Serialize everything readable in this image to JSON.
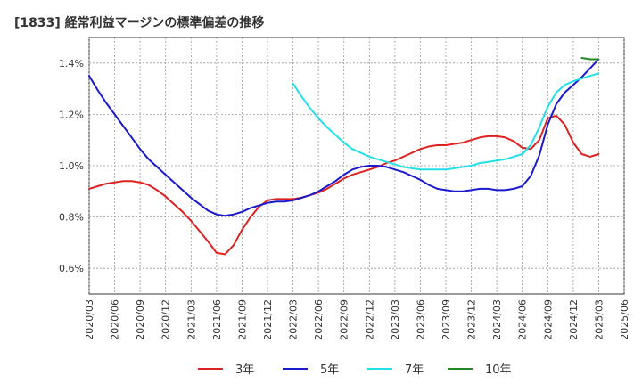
{
  "chart_data": {
    "type": "line",
    "title": "[1833]  経常利益マージンの標準偏差の推移",
    "xlabel": "",
    "ylabel": "",
    "x_ticks": [
      "2020/03",
      "2020/06",
      "2020/09",
      "2020/12",
      "2021/03",
      "2021/06",
      "2021/09",
      "2021/12",
      "2022/03",
      "2022/06",
      "2022/09",
      "2022/12",
      "2023/03",
      "2023/06",
      "2023/09",
      "2023/12",
      "2024/03",
      "2024/06",
      "2024/09",
      "2024/12",
      "2025/03",
      "2025/06"
    ],
    "y_ticks": [
      0.6,
      0.8,
      1.0,
      1.2,
      1.4
    ],
    "y_tick_labels": [
      "0.6%",
      "0.8%",
      "1.0%",
      "1.2%",
      "1.4%"
    ],
    "ylim": [
      0.5,
      1.5
    ],
    "grid": true,
    "legend_position": "bottom",
    "series": [
      {
        "name": "3年",
        "color": "#dd2222",
        "points": [
          [
            "2020/03",
            0.91
          ],
          [
            "2020/04",
            0.92
          ],
          [
            "2020/05",
            0.93
          ],
          [
            "2020/06",
            0.935
          ],
          [
            "2020/07",
            0.94
          ],
          [
            "2020/08",
            0.94
          ],
          [
            "2020/09",
            0.935
          ],
          [
            "2020/10",
            0.925
          ],
          [
            "2020/11",
            0.905
          ],
          [
            "2020/12",
            0.88
          ],
          [
            "2021/01",
            0.85
          ],
          [
            "2021/02",
            0.82
          ],
          [
            "2021/03",
            0.785
          ],
          [
            "2021/04",
            0.745
          ],
          [
            "2021/05",
            0.705
          ],
          [
            "2021/06",
            0.66
          ],
          [
            "2021/07",
            0.655
          ],
          [
            "2021/08",
            0.69
          ],
          [
            "2021/09",
            0.75
          ],
          [
            "2021/10",
            0.8
          ],
          [
            "2021/11",
            0.84
          ],
          [
            "2021/12",
            0.865
          ],
          [
            "2022/01",
            0.87
          ],
          [
            "2022/02",
            0.87
          ],
          [
            "2022/03",
            0.87
          ],
          [
            "2022/04",
            0.875
          ],
          [
            "2022/05",
            0.885
          ],
          [
            "2022/06",
            0.895
          ],
          [
            "2022/07",
            0.91
          ],
          [
            "2022/08",
            0.93
          ],
          [
            "2022/09",
            0.95
          ],
          [
            "2022/10",
            0.965
          ],
          [
            "2022/11",
            0.975
          ],
          [
            "2022/12",
            0.985
          ],
          [
            "2023/01",
            0.995
          ],
          [
            "2023/02",
            1.01
          ],
          [
            "2023/03",
            1.02
          ],
          [
            "2023/04",
            1.035
          ],
          [
            "2023/05",
            1.05
          ],
          [
            "2023/06",
            1.065
          ],
          [
            "2023/07",
            1.075
          ],
          [
            "2023/08",
            1.08
          ],
          [
            "2023/09",
            1.08
          ],
          [
            "2023/10",
            1.085
          ],
          [
            "2023/11",
            1.09
          ],
          [
            "2023/12",
            1.1
          ],
          [
            "2024/01",
            1.11
          ],
          [
            "2024/02",
            1.115
          ],
          [
            "2024/03",
            1.115
          ],
          [
            "2024/04",
            1.11
          ],
          [
            "2024/05",
            1.095
          ],
          [
            "2024/06",
            1.07
          ],
          [
            "2024/07",
            1.065
          ],
          [
            "2024/08",
            1.1
          ],
          [
            "2024/09",
            1.185
          ],
          [
            "2024/10",
            1.195
          ],
          [
            "2024/11",
            1.16
          ],
          [
            "2024/12",
            1.09
          ],
          [
            "2025/01",
            1.045
          ],
          [
            "2025/02",
            1.035
          ],
          [
            "2025/03",
            1.045
          ]
        ]
      },
      {
        "name": "5年",
        "color": "#1a1acc",
        "points": [
          [
            "2020/03",
            1.35
          ],
          [
            "2020/04",
            1.295
          ],
          [
            "2020/05",
            1.245
          ],
          [
            "2020/06",
            1.2
          ],
          [
            "2020/07",
            1.155
          ],
          [
            "2020/08",
            1.11
          ],
          [
            "2020/09",
            1.065
          ],
          [
            "2020/10",
            1.025
          ],
          [
            "2020/11",
            0.995
          ],
          [
            "2020/12",
            0.965
          ],
          [
            "2021/01",
            0.935
          ],
          [
            "2021/02",
            0.905
          ],
          [
            "2021/03",
            0.875
          ],
          [
            "2021/04",
            0.85
          ],
          [
            "2021/05",
            0.825
          ],
          [
            "2021/06",
            0.81
          ],
          [
            "2021/07",
            0.805
          ],
          [
            "2021/08",
            0.81
          ],
          [
            "2021/09",
            0.82
          ],
          [
            "2021/10",
            0.835
          ],
          [
            "2021/11",
            0.845
          ],
          [
            "2021/12",
            0.855
          ],
          [
            "2022/01",
            0.86
          ],
          [
            "2022/02",
            0.86
          ],
          [
            "2022/03",
            0.865
          ],
          [
            "2022/04",
            0.875
          ],
          [
            "2022/05",
            0.885
          ],
          [
            "2022/06",
            0.9
          ],
          [
            "2022/07",
            0.92
          ],
          [
            "2022/08",
            0.94
          ],
          [
            "2022/09",
            0.965
          ],
          [
            "2022/10",
            0.985
          ],
          [
            "2022/11",
            0.995
          ],
          [
            "2022/12",
            1.0
          ],
          [
            "2023/01",
            1.0
          ],
          [
            "2023/02",
            0.995
          ],
          [
            "2023/03",
            0.985
          ],
          [
            "2023/04",
            0.975
          ],
          [
            "2023/05",
            0.96
          ],
          [
            "2023/06",
            0.945
          ],
          [
            "2023/07",
            0.925
          ],
          [
            "2023/08",
            0.91
          ],
          [
            "2023/09",
            0.905
          ],
          [
            "2023/10",
            0.9
          ],
          [
            "2023/11",
            0.9
          ],
          [
            "2023/12",
            0.905
          ],
          [
            "2024/01",
            0.91
          ],
          [
            "2024/02",
            0.91
          ],
          [
            "2024/03",
            0.905
          ],
          [
            "2024/04",
            0.905
          ],
          [
            "2024/05",
            0.91
          ],
          [
            "2024/06",
            0.92
          ],
          [
            "2024/07",
            0.96
          ],
          [
            "2024/08",
            1.04
          ],
          [
            "2024/09",
            1.16
          ],
          [
            "2024/10",
            1.24
          ],
          [
            "2024/11",
            1.285
          ],
          [
            "2024/12",
            1.315
          ],
          [
            "2025/01",
            1.345
          ],
          [
            "2025/02",
            1.38
          ],
          [
            "2025/03",
            1.415
          ]
        ]
      },
      {
        "name": "7年",
        "color": "#22e0e8",
        "points": [
          [
            "2022/03",
            1.32
          ],
          [
            "2022/04",
            1.27
          ],
          [
            "2022/05",
            1.225
          ],
          [
            "2022/06",
            1.185
          ],
          [
            "2022/07",
            1.15
          ],
          [
            "2022/08",
            1.12
          ],
          [
            "2022/09",
            1.09
          ],
          [
            "2022/10",
            1.065
          ],
          [
            "2022/11",
            1.05
          ],
          [
            "2022/12",
            1.035
          ],
          [
            "2023/01",
            1.025
          ],
          [
            "2023/02",
            1.015
          ],
          [
            "2023/03",
            1.005
          ],
          [
            "2023/04",
            0.995
          ],
          [
            "2023/05",
            0.99
          ],
          [
            "2023/06",
            0.985
          ],
          [
            "2023/07",
            0.985
          ],
          [
            "2023/08",
            0.985
          ],
          [
            "2023/09",
            0.985
          ],
          [
            "2023/10",
            0.99
          ],
          [
            "2023/11",
            0.995
          ],
          [
            "2023/12",
            1.0
          ],
          [
            "2024/01",
            1.01
          ],
          [
            "2024/02",
            1.015
          ],
          [
            "2024/03",
            1.02
          ],
          [
            "2024/04",
            1.025
          ],
          [
            "2024/05",
            1.035
          ],
          [
            "2024/06",
            1.045
          ],
          [
            "2024/07",
            1.08
          ],
          [
            "2024/08",
            1.15
          ],
          [
            "2024/09",
            1.23
          ],
          [
            "2024/10",
            1.285
          ],
          [
            "2024/11",
            1.315
          ],
          [
            "2024/12",
            1.33
          ],
          [
            "2025/01",
            1.34
          ],
          [
            "2025/02",
            1.35
          ],
          [
            "2025/03",
            1.36
          ]
        ]
      },
      {
        "name": "10年",
        "color": "#228822",
        "points": [
          [
            "2025/01",
            1.42
          ],
          [
            "2025/02",
            1.415
          ],
          [
            "2025/03",
            1.415
          ]
        ]
      }
    ]
  }
}
